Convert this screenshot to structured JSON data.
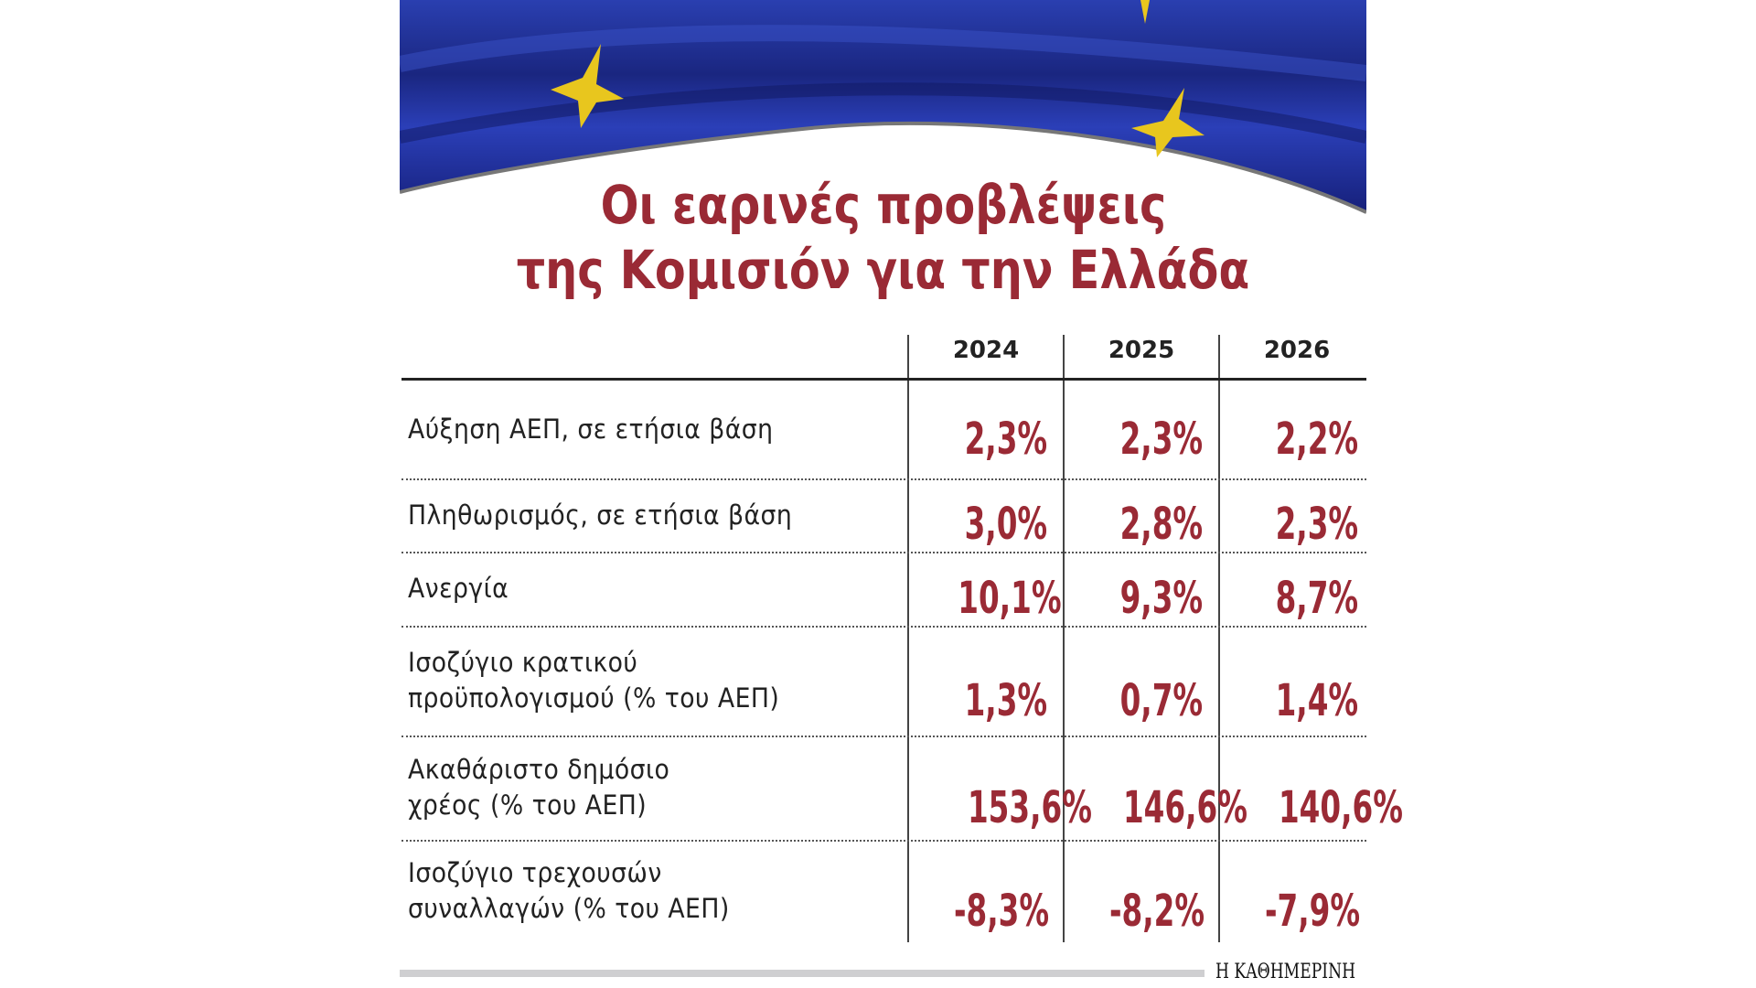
{
  "title": {
    "line1": "Οι εαρινές προβλέψεις",
    "line2": "της Κομισιόν για την Ελλάδα"
  },
  "colors": {
    "accent": "#9a2a35",
    "flag_blue": "#1f2f9a",
    "star_gold": "#f2d21c"
  },
  "table": {
    "years": [
      "2024",
      "2025",
      "2026"
    ],
    "rows": [
      {
        "label": [
          "Αύξηση ΑΕΠ, σε ετήσια βάση"
        ],
        "values": [
          "2,3%",
          "2,3%",
          "2,2%"
        ]
      },
      {
        "label": [
          "Πληθωρισμός, σε ετήσια βάση"
        ],
        "values": [
          "3,0%",
          "2,8%",
          "2,3%"
        ]
      },
      {
        "label": [
          "Ανεργία"
        ],
        "values": [
          "10,1%",
          "9,3%",
          "8,7%"
        ]
      },
      {
        "label": [
          "Ισοζύγιο κρατικού",
          "προϋπολογισμού (% του ΑΕΠ)"
        ],
        "values": [
          "1,3%",
          "0,7%",
          "1,4%"
        ]
      },
      {
        "label": [
          "Ακαθάριστο δημόσιο",
          "χρέος (% του ΑΕΠ)"
        ],
        "values": [
          "153,6%",
          "146,6%",
          "140,6%"
        ]
      },
      {
        "label": [
          "Ισοζύγιο τρεχουσών",
          "συναλλαγών (% του ΑΕΠ)"
        ],
        "values": [
          "-8,3%",
          "-8,2%",
          "-7,9%"
        ]
      }
    ]
  },
  "footer": {
    "logo": "Η ΚΑΘΗΜΕΡΙΝΗ"
  }
}
